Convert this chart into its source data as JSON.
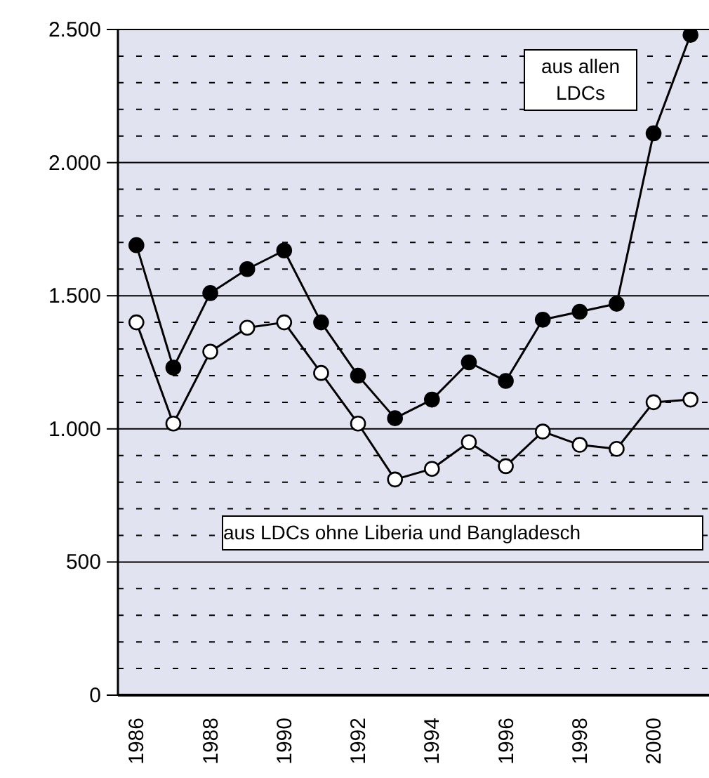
{
  "chart_data": {
    "type": "line",
    "categories": [
      "1986",
      null,
      "1988",
      null,
      "1990",
      null,
      "1992",
      null,
      "1994",
      null,
      "1996",
      null,
      "1998",
      null,
      "2000",
      null
    ],
    "series": [
      {
        "name": "aus allen LDCs",
        "color": "#000000",
        "values": [
          1690,
          1230,
          1510,
          1600,
          1670,
          1400,
          1200,
          1040,
          1110,
          1250,
          1180,
          1410,
          1440,
          1470,
          2110,
          2480
        ]
      },
      {
        "name": "aus LDCs ohne Liberia und Bangladesch",
        "color": "#000000",
        "values": [
          1400,
          1020,
          1290,
          1380,
          1400,
          1210,
          1020,
          810,
          850,
          950,
          860,
          990,
          940,
          925,
          1100,
          1110
        ]
      }
    ],
    "ylim": [
      0,
      2500
    ],
    "yticks": [
      {
        "value": 0,
        "label": "0"
      },
      {
        "value": 100,
        "label": null
      },
      {
        "value": 200,
        "label": null
      },
      {
        "value": 300,
        "label": null
      },
      {
        "value": 400,
        "label": null
      },
      {
        "value": 500,
        "label": "500"
      },
      {
        "value": 600,
        "label": null
      },
      {
        "value": 700,
        "label": null
      },
      {
        "value": 800,
        "label": null
      },
      {
        "value": 900,
        "label": null
      },
      {
        "value": 1000,
        "label": "1.000"
      },
      {
        "value": 1100,
        "label": null
      },
      {
        "value": 1200,
        "label": null
      },
      {
        "value": 1300,
        "label": null
      },
      {
        "value": 1400,
        "label": null
      },
      {
        "value": 1500,
        "label": "1.500"
      },
      {
        "value": 1600,
        "label": null
      },
      {
        "value": 1700,
        "label": null
      },
      {
        "value": 1800,
        "label": null
      },
      {
        "value": 1900,
        "label": null
      },
      {
        "value": 2000,
        "label": "2.000"
      },
      {
        "value": 2100,
        "label": null
      },
      {
        "value": 2200,
        "label": null
      },
      {
        "value": 2300,
        "label": null
      },
      {
        "value": 2400,
        "label": null
      },
      {
        "value": 2500,
        "label": "2.500"
      }
    ],
    "grid": "y",
    "legend": false,
    "marker": "circle",
    "line_style": "solid"
  }
}
